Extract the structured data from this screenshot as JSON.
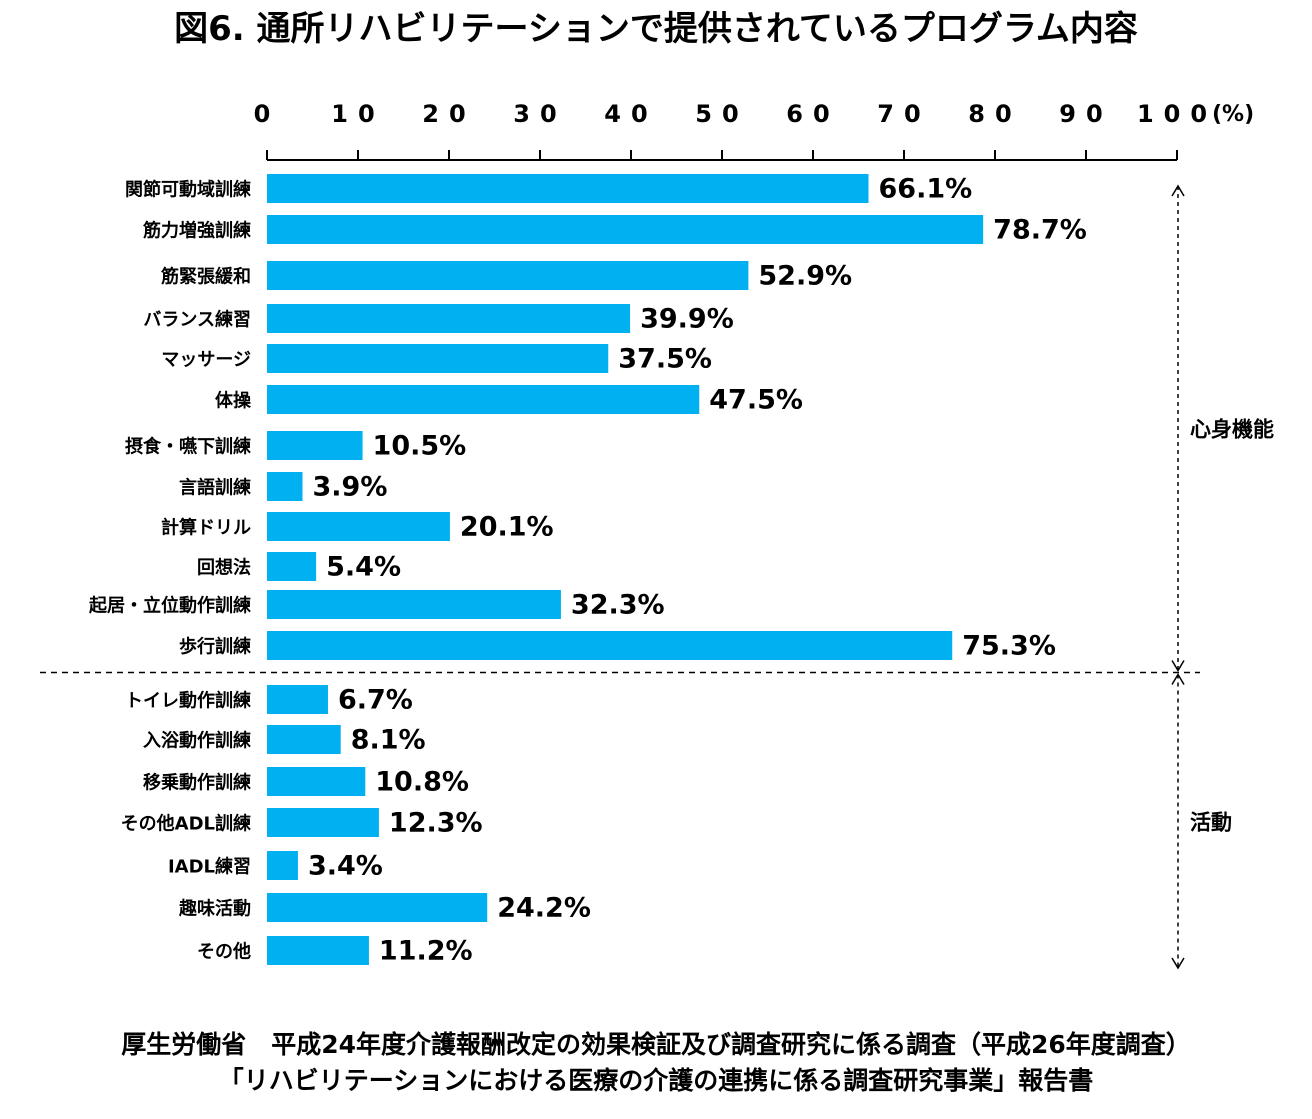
{
  "title": "図6. 通所リハビリテーションで提供されているプログラム内容",
  "chart_data": {
    "type": "bar",
    "orientation": "horizontal",
    "title": "図6. 通所リハビリテーションで提供されているプログラム内容",
    "x_ticks": [
      "0",
      "10",
      "20",
      "30",
      "40",
      "50",
      "60",
      "70",
      "80",
      "90",
      "100"
    ],
    "x_unit": "(%)",
    "xlim": [
      0,
      100
    ],
    "categories": [
      "関節可動域訓練",
      "筋力増強訓練",
      "筋緊張緩和",
      "バランス練習",
      "マッサージ",
      "体操",
      "摂食・嚥下訓練",
      "言語訓練",
      "計算ドリル",
      "回想法",
      "起居・立位動作訓練",
      "歩行訓練",
      "トイレ動作訓練",
      "入浴動作訓練",
      "移乗動作訓練",
      "その他ADL訓練",
      "IADL練習",
      "趣味活動",
      "その他"
    ],
    "values": [
      66.1,
      78.7,
      52.9,
      39.9,
      37.5,
      47.5,
      10.5,
      3.9,
      20.1,
      5.4,
      32.3,
      75.3,
      6.7,
      8.1,
      10.8,
      12.3,
      3.4,
      24.2,
      11.2
    ],
    "value_labels": [
      "66.1%",
      "78.7%",
      "52.9%",
      "39.9%",
      "37.5%",
      "47.5%",
      "10.5%",
      "3.9%",
      "20.1%",
      "5.4%",
      "32.3%",
      "75.3%",
      "6.7%",
      "8.1%",
      "10.8%",
      "12.3%",
      "3.4%",
      "24.2%",
      "11.2%"
    ],
    "groups": [
      {
        "name": "心身機能",
        "start": 0,
        "end": 11
      },
      {
        "name": "活動",
        "start": 12,
        "end": 18
      }
    ],
    "bar_color": "#00b0f0"
  },
  "footer": {
    "line1": "厚生労働省　平成24年度介護報酬改定の効果検証及び調査研究に係る調査（平成26年度調査）",
    "line2": "「リハビリテーションにおける医療の介護の連携に係る調査研究事業」報告書"
  }
}
